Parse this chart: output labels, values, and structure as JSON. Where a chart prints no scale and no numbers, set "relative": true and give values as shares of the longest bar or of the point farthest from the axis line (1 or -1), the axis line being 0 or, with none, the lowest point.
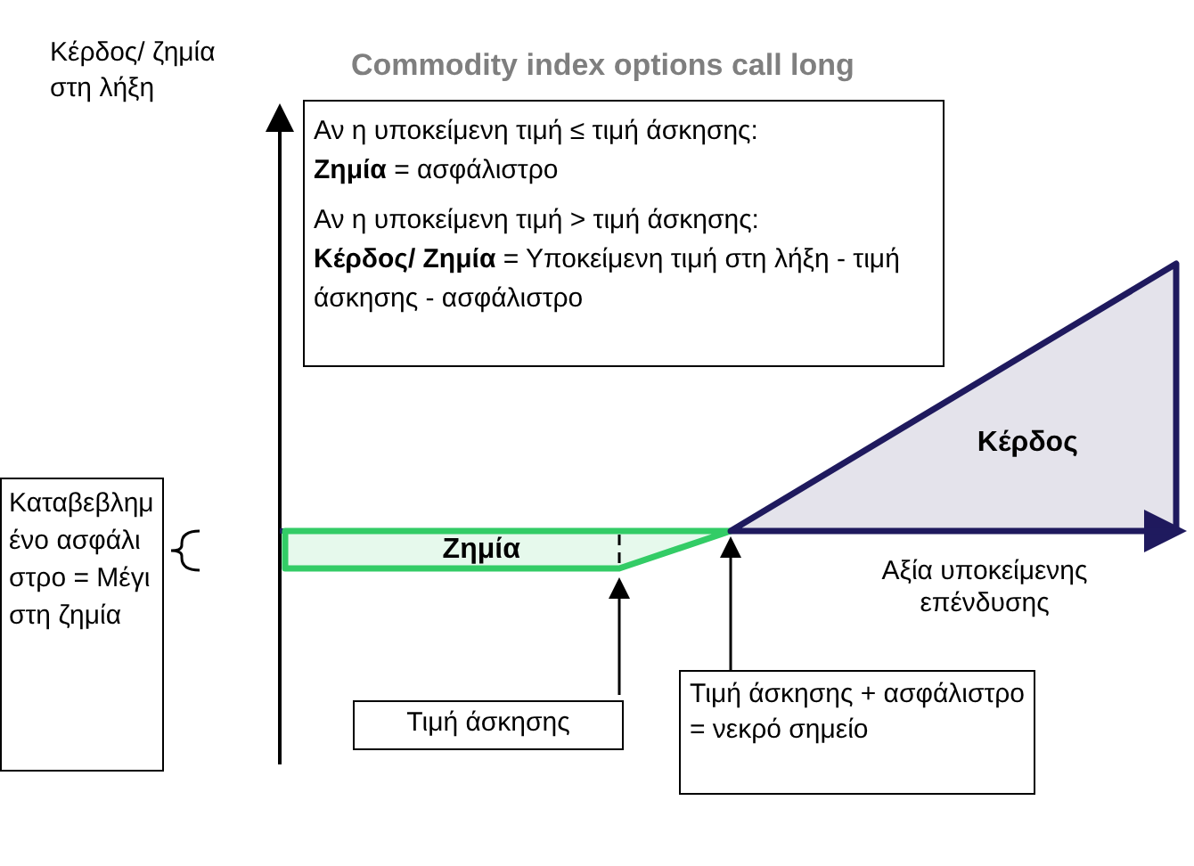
{
  "chart_data": {
    "type": "area",
    "relative": true,
    "title": "Commodity index options call long",
    "xlabel": "Αξία υποκείμενης επένδυσης",
    "categories": [
      null,
      null,
      null,
      null,
      null,
      null,
      null,
      null,
      null
    ],
    "series": [
      {
        "name": "Ζημία",
        "color": "#33cc66",
        "values": [
          -0.14,
          -0.14,
          -0.14,
          -0.14,
          0,
          null,
          null,
          null,
          null
        ]
      },
      {
        "name": "Κέρδος",
        "color": "#1f1a5e",
        "values": [
          null,
          null,
          null,
          null,
          0,
          0.25,
          0.5,
          0.75,
          1
        ]
      }
    ],
    "annotations": [
      "Αν η υποκείμενη τιμή ≤ τιμή άσκησης:",
      "Ζημία = ασφάλιστρο",
      "Αν η υποκείμενη τιμή > τιμή άσκησης:",
      "Κέρδος/ Ζημία = Υποκείμενη τιμή στη λήξη - τιμή άσκησης - ασφάλιστρο",
      "Καταβεβλημένο ασφάλιστρο = Μέγιστη ζημία",
      "Τιμή άσκησης",
      "Τιμή άσκησης + ασφάλιστρο = νεκρό σημείο",
      "Κέρδος/ ζημία στη λήξη"
    ]
  }
}
